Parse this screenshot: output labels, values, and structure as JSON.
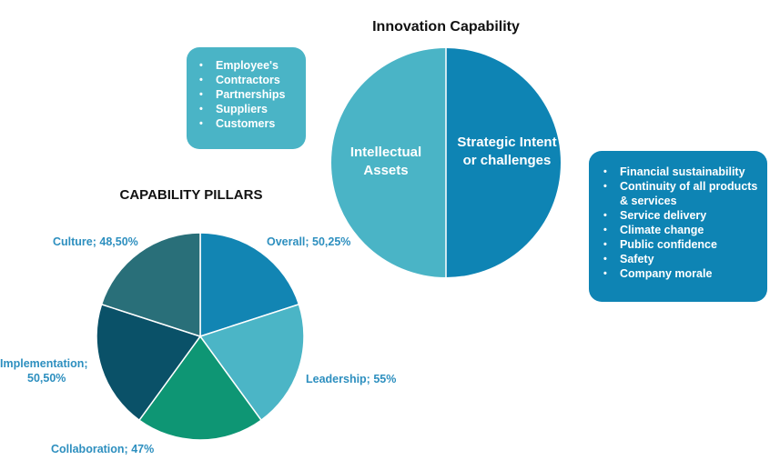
{
  "header": {
    "title": "Innovation Capability"
  },
  "innovation_circle": {
    "left_label": "Intellectual Assets",
    "right_label": "Strategic Intent or challenges",
    "colors": {
      "left": "#4ab4c6",
      "right": "#0e84b4"
    }
  },
  "left_box": {
    "items": [
      "Employee's",
      "Contractors",
      "Partnerships",
      "Suppliers",
      "Customers"
    ]
  },
  "right_box": {
    "items": [
      "Financial sustainability",
      "Continuity of all products & services",
      "Service delivery",
      "Climate change",
      "Public confidence",
      "Safety",
      "Company morale"
    ]
  },
  "pillars": {
    "title": "CAPABILITY PILLARS",
    "labels": {
      "overall": "Overall; 50,25%",
      "leadership": "Leadership; 55%",
      "collaboration": "Collaboration; 47%",
      "implementation_line1": "Implementation;",
      "implementation_line2": "50,50%",
      "culture": "Culture; 48,50%"
    }
  },
  "chart_data": {
    "type": "pie",
    "title": "CAPABILITY PILLARS",
    "categories": [
      "Overall",
      "Leadership",
      "Collaboration",
      "Implementation",
      "Culture"
    ],
    "values": [
      50.25,
      55,
      47,
      50.5,
      48.5
    ],
    "colors": [
      "#1285b3",
      "#4bb5c6",
      "#0e9674",
      "#0a5168",
      "#296f79"
    ],
    "note_values": "slices drawn as equal sectors as in the original figure"
  }
}
